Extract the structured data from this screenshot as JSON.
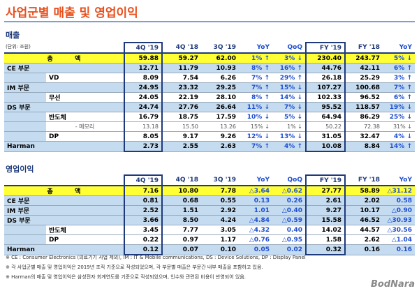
{
  "title": "사업군별 매출 및 영업이익",
  "revenue": {
    "heading": "매출",
    "unit": "(단위: 조원)",
    "headers": [
      "4Q '19",
      "4Q '18",
      "3Q '19",
      "YoY",
      "QoQ",
      "FY '19",
      "FY '18",
      "YoY"
    ],
    "rows": [
      {
        "kind": "total",
        "label": "총          액",
        "values": [
          "59.88",
          "59.27",
          "62.00",
          "1% ↑",
          "3% ↓",
          "230.40",
          "243.77",
          "5% ↓"
        ]
      },
      {
        "kind": "seg",
        "label": "CE 부문",
        "values": [
          "12.71",
          "11.79",
          "10.93",
          "8% ↑",
          "16% ↑",
          "44.76",
          "42.11",
          "6% ↑"
        ]
      },
      {
        "kind": "sub",
        "label": "VD",
        "values": [
          "8.09",
          "7.54",
          "6.26",
          "7% ↑",
          "29% ↑",
          "26.18",
          "25.29",
          "3% ↑"
        ]
      },
      {
        "kind": "seg",
        "label": "IM 부문",
        "values": [
          "24.95",
          "23.32",
          "29.25",
          "7% ↑",
          "15% ↓",
          "107.27",
          "100.68",
          "7% ↑"
        ]
      },
      {
        "kind": "sub",
        "label": "무선",
        "values": [
          "24.05",
          "22.19",
          "28.10",
          "8% ↑",
          "14% ↓",
          "102.33",
          "96.52",
          "6% ↑"
        ]
      },
      {
        "kind": "seg",
        "label": "DS 부문",
        "values": [
          "24.74",
          "27.76",
          "26.64",
          "11% ↓",
          "7% ↓",
          "95.52",
          "118.57",
          "19% ↓"
        ]
      },
      {
        "kind": "sub",
        "label": "반도체",
        "values": [
          "16.79",
          "18.75",
          "17.59",
          "10% ↓",
          "5% ↓",
          "64.94",
          "86.29",
          "25% ↓"
        ]
      },
      {
        "kind": "minor",
        "label": "- 메모리",
        "values": [
          "13.18",
          "15.50",
          "13.26",
          "15% ↓",
          "1% ↓",
          "50.22",
          "72.38",
          "31% ↓"
        ]
      },
      {
        "kind": "sub",
        "label": "DP",
        "values": [
          "8.05",
          "9.17",
          "9.26",
          "12% ↓",
          "13% ↓",
          "31.05",
          "32.47",
          "4% ↓"
        ]
      },
      {
        "kind": "seg",
        "label": "Harman",
        "values": [
          "2.73",
          "2.55",
          "2.63",
          "7% ↑",
          "4% ↑",
          "10.08",
          "8.84",
          "14% ↑"
        ]
      }
    ]
  },
  "profit": {
    "heading": "영업이익",
    "headers": [
      "4Q '19",
      "4Q '18",
      "3Q '19",
      "YoY",
      "QoQ",
      "FY '19",
      "FY '18",
      "YoY"
    ],
    "rows": [
      {
        "kind": "total",
        "label": "총          액",
        "values": [
          "7.16",
          "10.80",
          "7.78",
          "△3.64",
          "△0.62",
          "27.77",
          "58.89",
          "△31.12"
        ]
      },
      {
        "kind": "seg",
        "label": "CE 부문",
        "values": [
          "0.81",
          "0.68",
          "0.55",
          "0.13",
          "0.26",
          "2.61",
          "2.02",
          "0.58"
        ]
      },
      {
        "kind": "seg",
        "label": "IM 부문",
        "values": [
          "2.52",
          "1.51",
          "2.92",
          "1.01",
          "△0.40",
          "9.27",
          "10.17",
          "△0.90"
        ]
      },
      {
        "kind": "seg",
        "label": "DS 부문",
        "values": [
          "3.66",
          "8.50",
          "4.24",
          "△4.84",
          "△0.59",
          "15.58",
          "46.52",
          "△30.93"
        ]
      },
      {
        "kind": "sub",
        "label": "반도체",
        "values": [
          "3.45",
          "7.77",
          "3.05",
          "△4.32",
          "0.40",
          "14.02",
          "44.57",
          "△30.56"
        ]
      },
      {
        "kind": "sub",
        "label": "DP",
        "values": [
          "0.22",
          "0.97",
          "1.17",
          "△0.76",
          "△0.95",
          "1.58",
          "2.62",
          "△1.04"
        ]
      },
      {
        "kind": "seg",
        "label": "Harman",
        "values": [
          "0.12",
          "0.07",
          "0.10",
          "0.05",
          "0.02",
          "0.32",
          "0.16",
          "0.16"
        ]
      }
    ]
  },
  "notes": [
    "※ CE : Consumer Electronics (의료기기 사업 제외),  IM : IT & Mobile communications,  DS : Device Solutions,  DP : Display Panel",
    "※ 각 사업군별 매출 및 영업이익은 2019년 조직 기준으로 작성되었으며, 각 부문별 매출은 부문간 내부 매출을 포함하고 있음.",
    "※ Harman의 매출 및 영업이익은 삼성전자 회계연도를 기준으로 작성되었으며, 인수와 관련된 비용이 반영되어 있음."
  ],
  "watermark": "BodNara"
}
